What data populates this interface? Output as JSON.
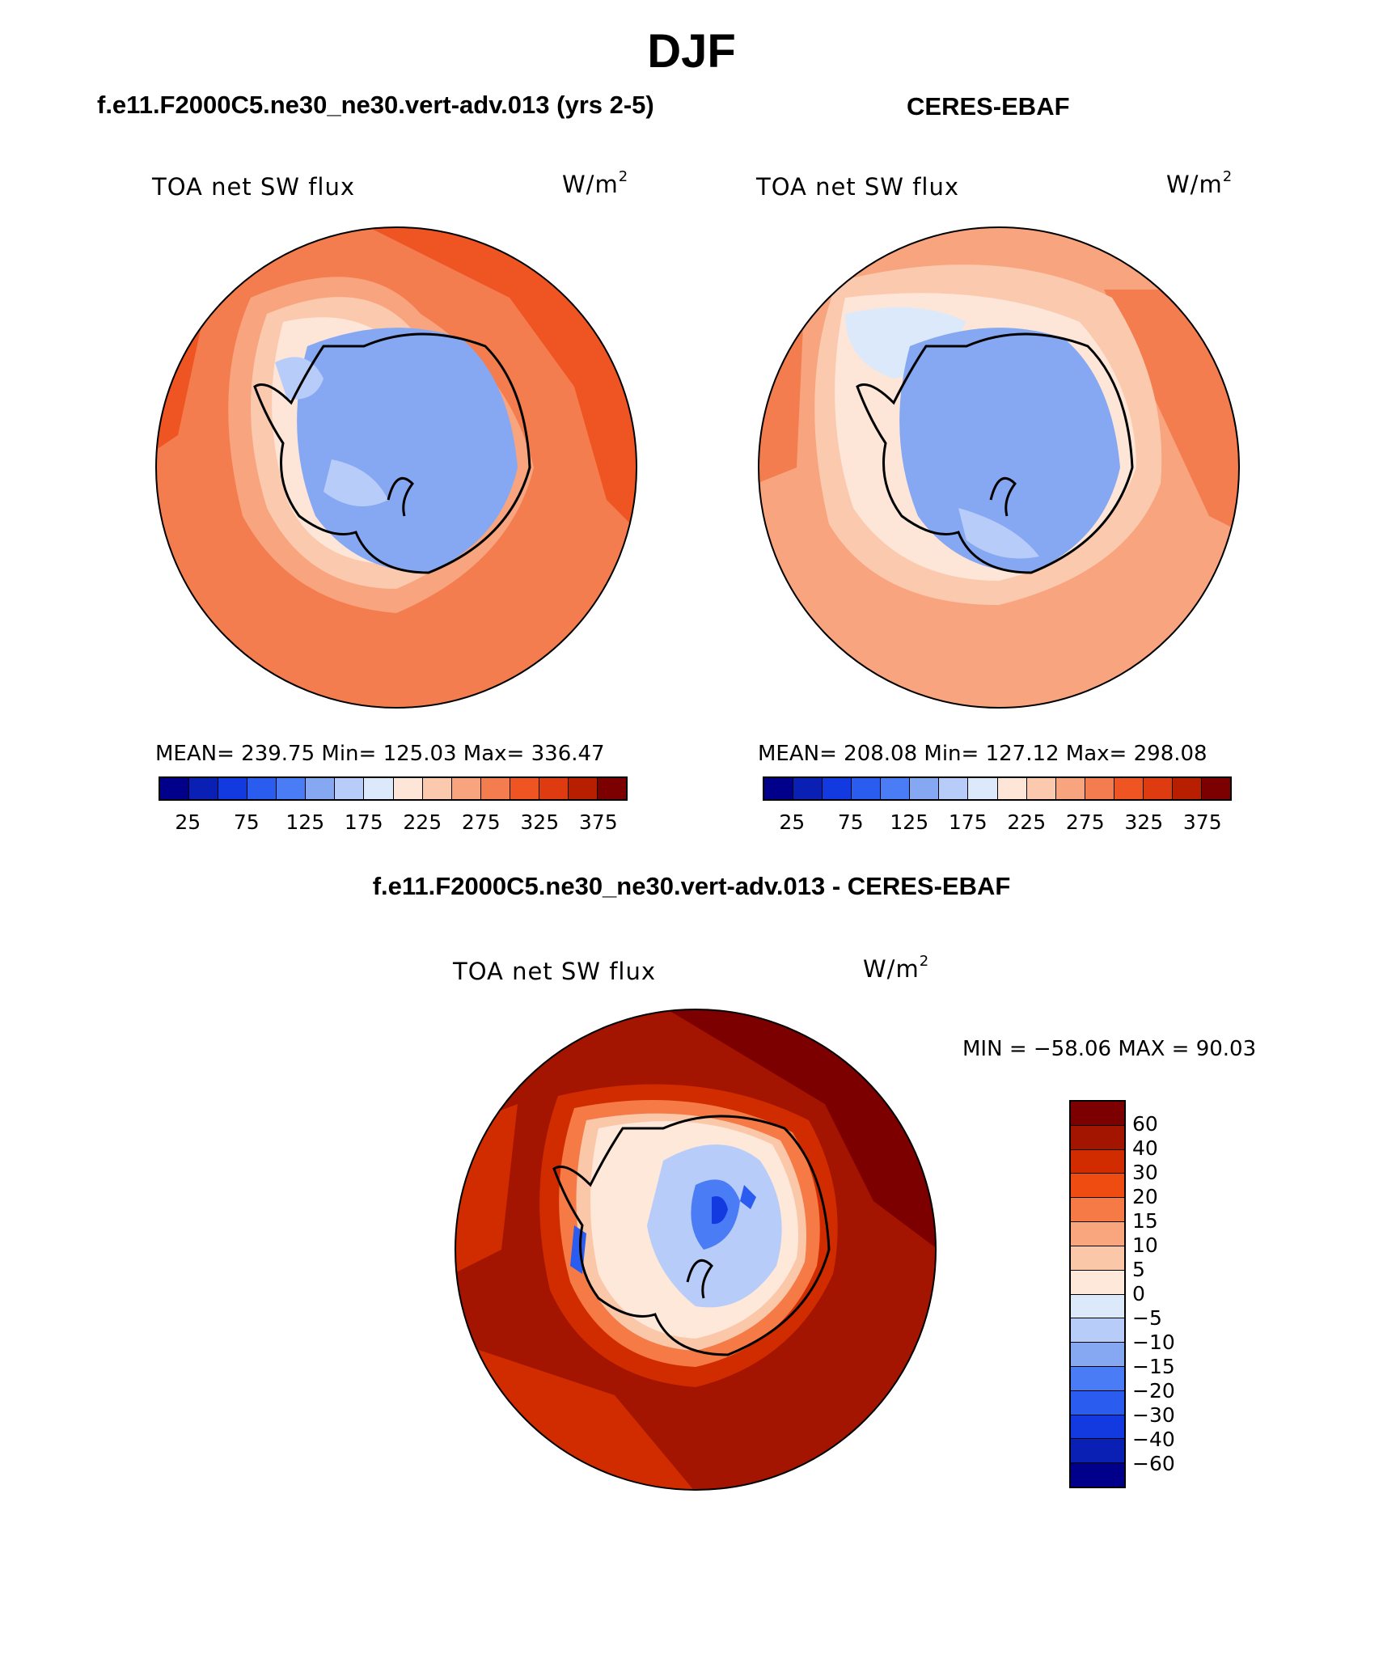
{
  "header": {
    "title": "DJF",
    "left_title": "f.e11.F2000C5.ne30_ne30.vert-adv.013 (yrs 2-5)",
    "right_title": "CERES-EBAF",
    "diff_title": "f.e11.F2000C5.ne30_ne30.vert-adv.013 - CERES-EBAF"
  },
  "panels": {
    "model": {
      "label": "TOA net SW flux",
      "units_base": "W/m",
      "units_exp": "2",
      "stats": "MEAN= 239.75   Min= 125.03   Max= 336.47"
    },
    "obs": {
      "label": "TOA net SW flux",
      "units_base": "W/m",
      "units_exp": "2",
      "stats": "MEAN= 208.08   Min= 127.12   Max= 298.08"
    },
    "diff": {
      "label": "TOA net SW flux",
      "units_base": "W/m",
      "units_exp": "2",
      "stats": "MIN = −58.06 MAX =  90.03"
    }
  },
  "colorbar_abs": {
    "colors": [
      "#00008a",
      "#0a1fb4",
      "#1339e0",
      "#2a5cf0",
      "#4a7df5",
      "#86a8f3",
      "#b7ccf8",
      "#dbe9fb",
      "#fde6d8",
      "#fbc9ad",
      "#f8a47e",
      "#f47d4f",
      "#ef5522",
      "#df3b10",
      "#b81f00",
      "#7d0000"
    ],
    "tick_labels": [
      "25",
      "75",
      "125",
      "175",
      "225",
      "275",
      "325",
      "375"
    ]
  },
  "colorbar_diff": {
    "colors": [
      "#7d0000",
      "#a31500",
      "#d12c00",
      "#ee4c10",
      "#f57a45",
      "#f9a57d",
      "#fbc7a9",
      "#fde8da",
      "#dbe9fb",
      "#b7ccf8",
      "#86a8f3",
      "#4a7df5",
      "#2a5cf0",
      "#1339e0",
      "#0a1fb4",
      "#00008a"
    ],
    "tick_labels": [
      "60",
      "40",
      "30",
      "20",
      "15",
      "10",
      "5",
      "0",
      "−5",
      "−10",
      "−15",
      "−20",
      "−30",
      "−40",
      "−60"
    ]
  }
}
